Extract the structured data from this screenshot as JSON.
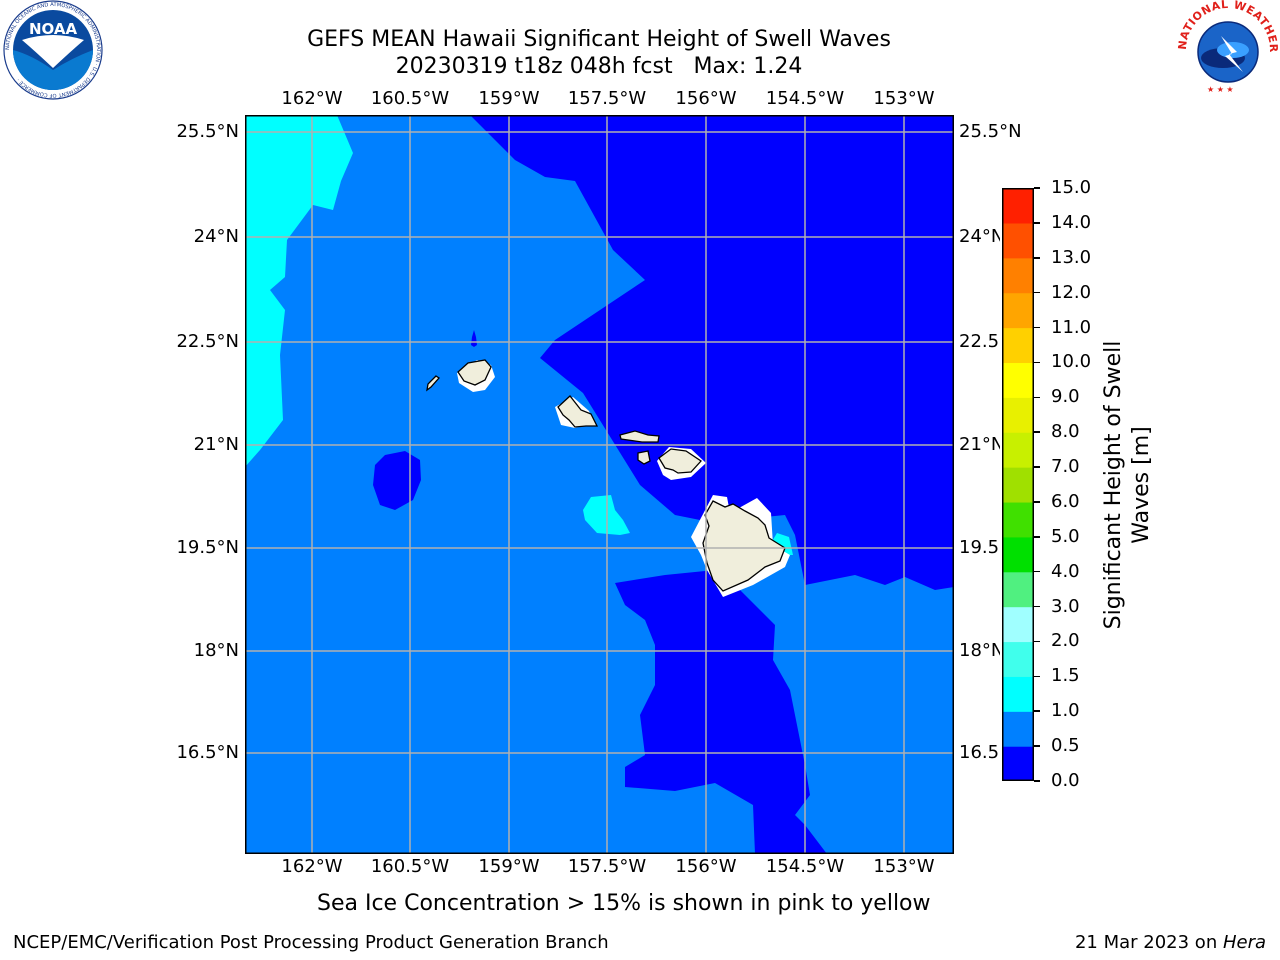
{
  "title": {
    "line1": "GEFS MEAN Hawaii Significant Height of Swell Waves",
    "line2": "20230319 t18z 048h fcst   Max: 1.24"
  },
  "map": {
    "lon_labels": [
      "162°W",
      "160.5°W",
      "159°W",
      "157.5°W",
      "156°W",
      "154.5°W",
      "153°W"
    ],
    "lat_labels": [
      "25.5°N",
      "24°N",
      "22.5°N",
      "21°N",
      "19.5°N",
      "18°N",
      "16.5°N"
    ],
    "colors": {
      "band_0": "#0000ff",
      "band_05": "#0080ff",
      "band_10": "#00ffff",
      "land": "#f0eedc",
      "grid": "#b0b0b0"
    }
  },
  "colorbar": {
    "label_line1": "Significant Height of Swell",
    "label_line2": "Waves [m]",
    "ticks": [
      "0.0",
      "0.5",
      "1.0",
      "1.5",
      "2.0",
      "3.0",
      "4.0",
      "5.0",
      "6.0",
      "7.0",
      "8.0",
      "9.0",
      "10.0",
      "11.0",
      "12.0",
      "13.0",
      "14.0",
      "15.0"
    ],
    "colors": [
      "#0000ff",
      "#0080ff",
      "#00ffff",
      "#40ffec",
      "#a0ffff",
      "#50f080",
      "#00e000",
      "#40e000",
      "#a0e000",
      "#c8f000",
      "#e8f000",
      "#ffff00",
      "#ffd000",
      "#ffa500",
      "#ff8000",
      "#ff5000",
      "#ff2000"
    ]
  },
  "note": "Sea Ice Concentration > 15% is shown in pink to yellow",
  "footer": {
    "left": "NCEP/EMC/Verification Post Processing Product Generation Branch",
    "date": "21 Mar 2023 on ",
    "host": "Hera"
  },
  "logos": {
    "noaa": "NOAA",
    "noaa_ring": "NATIONAL OCEANIC AND ATMOSPHERIC ADMINISTRATION · U.S. DEPARTMENT OF COMMERCE ·",
    "nws_ring": "NATIONAL WEATHER SERVICE"
  }
}
